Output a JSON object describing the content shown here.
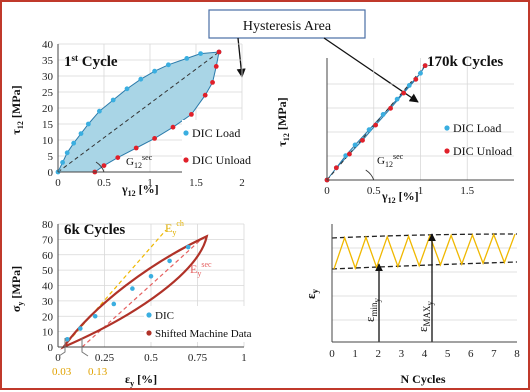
{
  "colors": {
    "border": "#c0392b",
    "load": "#3aaee0",
    "unload": "#e0202a",
    "fill": "#a9d5e6",
    "outline": "#2b7bab",
    "ring": "#b03228",
    "gold": "#f0b800",
    "linePink": "#e56060",
    "callout": "#4a6fa5"
  },
  "callout": {
    "label": "Hysteresis Area"
  },
  "chart_data": [
    {
      "type": "scatter",
      "title": "1st Cycle",
      "title_sup": "st",
      "xlabel": "γ12 [%]",
      "ylabel": "τ12 [MPa]",
      "xlim": [
        0,
        2
      ],
      "ylim": [
        0,
        40
      ],
      "xticks": [
        "0",
        "0.5",
        "1",
        "1.5",
        "2"
      ],
      "yticks": [
        "0",
        "5",
        "10",
        "15",
        "20",
        "25",
        "30",
        "35",
        "40"
      ],
      "annotation": "G12sec",
      "legend": [
        "DIC Load",
        "DIC Unload"
      ],
      "series": [
        {
          "name": "DIC Load",
          "x": [
            0,
            0.05,
            0.1,
            0.17,
            0.25,
            0.33,
            0.45,
            0.6,
            0.75,
            0.9,
            1.05,
            1.2,
            1.4,
            1.55,
            1.75
          ],
          "y": [
            0,
            3,
            6,
            9,
            12,
            15,
            19,
            22.5,
            26,
            29,
            31.5,
            33.5,
            35.5,
            37,
            37.5
          ]
        },
        {
          "name": "DIC Unload",
          "x": [
            1.75,
            1.72,
            1.68,
            1.6,
            1.45,
            1.25,
            1.05,
            0.85,
            0.65,
            0.5,
            0.4
          ],
          "y": [
            37.5,
            33,
            28,
            24,
            18,
            14,
            10.5,
            7.5,
            4.5,
            2,
            0
          ]
        }
      ]
    },
    {
      "type": "scatter",
      "title": "170k Cycles",
      "xlabel": "γ12 [%]",
      "ylabel": "τ12 [MPa]",
      "xlim": [
        0,
        2
      ],
      "ylim": [
        0,
        40
      ],
      "xticks": [
        "0",
        "0.5",
        "1",
        "1.5"
      ],
      "annotation": "G12sec",
      "legend": [
        "DIC Load",
        "DIC Unload"
      ],
      "series": [
        {
          "name": "DIC Load",
          "x": [
            0,
            0.1,
            0.2,
            0.3,
            0.45,
            0.6,
            0.75,
            0.88,
            1.0,
            1.05
          ],
          "y": [
            0,
            4,
            8,
            11.5,
            16.5,
            21.5,
            26.5,
            31,
            35,
            37.5
          ]
        },
        {
          "name": "DIC Unload",
          "x": [
            1.05,
            0.95,
            0.82,
            0.68,
            0.52,
            0.38,
            0.24,
            0.1,
            0
          ],
          "y": [
            37.5,
            33,
            28.5,
            23.5,
            18,
            13,
            8.5,
            4,
            0
          ]
        }
      ]
    },
    {
      "type": "scatter",
      "title": "6k Cycles",
      "xlabel": "εy [%]",
      "ylabel": "σy [MPa]",
      "xlim": [
        0,
        1
      ],
      "ylim": [
        0,
        80
      ],
      "xticks": [
        "0",
        "0.25",
        "0.5",
        "0.75",
        "1"
      ],
      "yticks": [
        "0",
        "10",
        "20",
        "30",
        "40",
        "50",
        "60",
        "70",
        "80"
      ],
      "offsets": [
        "0.03",
        "0.13"
      ],
      "annotations": [
        "Eych",
        "Eysec"
      ],
      "legend": [
        "DIC",
        "Shifted Machine Data"
      ],
      "series": [
        {
          "name": "DIC",
          "x": [
            0.05,
            0.12,
            0.2,
            0.3,
            0.4,
            0.5,
            0.6,
            0.7
          ],
          "y": [
            5,
            12,
            20,
            28,
            38,
            46,
            56,
            65
          ]
        }
      ]
    },
    {
      "type": "line",
      "xlabel": "N Cycles",
      "ylabel": "εy",
      "xlim": [
        0,
        8
      ],
      "xticks": [
        "0",
        "1",
        "2",
        "3",
        "4",
        "5",
        "6",
        "7",
        "8"
      ],
      "annotations": [
        "εminy",
        "εMAXy"
      ]
    }
  ]
}
